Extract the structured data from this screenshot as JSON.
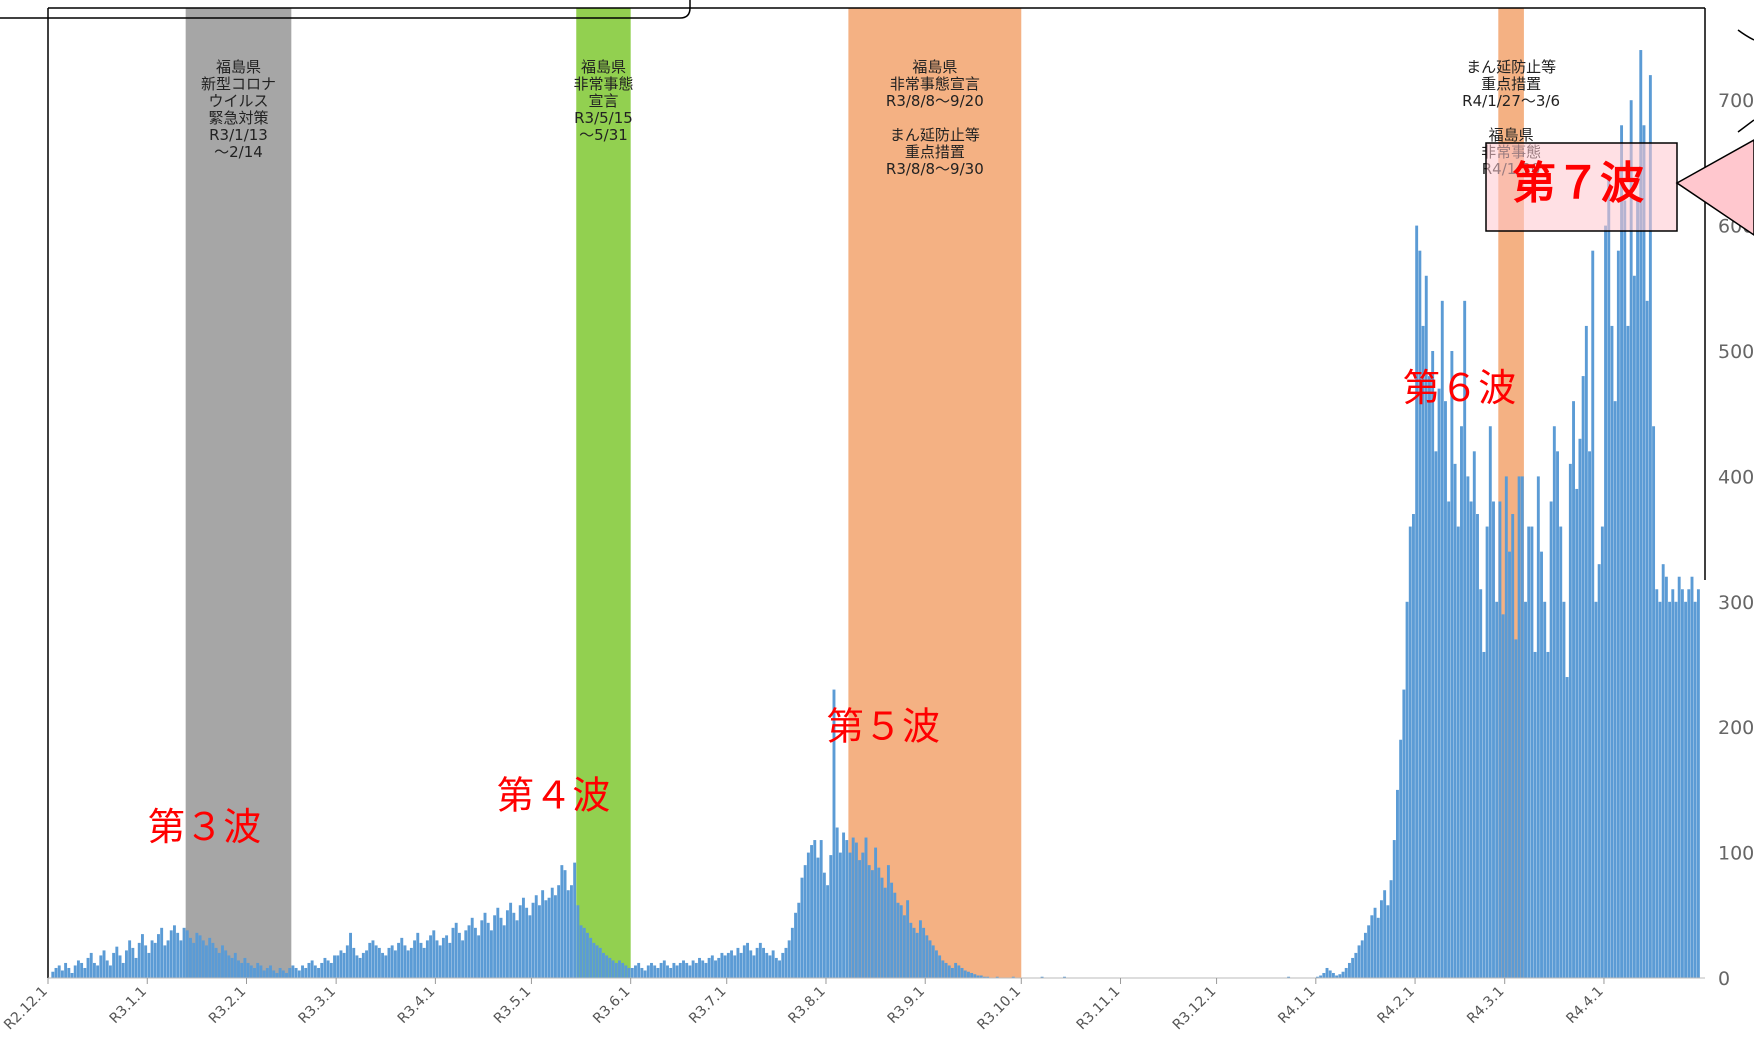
{
  "colors": {
    "bar": "#5b9bd5",
    "gray_band": "#a6a6a6",
    "green_band": "#92d050",
    "orange_band": "#f4b183",
    "wave_text": "#ff0000",
    "callout_fill": "#ffc7ce"
  },
  "chart_data": {
    "type": "bar",
    "title": "",
    "xlabel": "",
    "ylabel": "",
    "x_start": "R2.12.1",
    "ylim": [
      0,
      750
    ],
    "y_ticks": [
      "0",
      "100",
      "200",
      "300",
      "400",
      "500",
      "600",
      "700"
    ],
    "x_ticks": [
      "R2.12.1",
      "R3.1.1",
      "R3.2.1",
      "R3.3.1",
      "R3.4.1",
      "R3.5.1",
      "R3.6.1",
      "R3.7.1",
      "R3.8.1",
      "R3.9.1",
      "R3.10.1",
      "R3.11.1",
      "R3.12.1",
      "R4.1.1",
      "R4.2.1",
      "R4.3.1",
      "R4.4.1"
    ],
    "month_days": [
      31,
      31,
      28,
      31,
      30,
      31,
      30,
      31,
      31,
      30,
      31,
      30,
      31,
      31,
      28,
      31,
      30
    ],
    "monthly_daily_cases": [
      [
        0,
        5,
        8,
        10,
        6,
        12,
        8,
        4,
        10,
        14,
        12,
        8,
        16,
        20,
        12,
        10,
        18,
        22,
        14,
        10,
        20,
        25,
        18,
        12,
        22,
        30,
        24,
        16,
        28,
        35,
        26
      ],
      [
        20,
        30,
        28,
        35,
        40,
        26,
        30,
        38,
        42,
        36,
        30,
        40,
        38,
        32,
        28,
        36,
        34,
        30,
        26,
        32,
        28,
        24,
        20,
        26,
        22,
        18,
        16,
        20,
        14,
        12,
        16
      ],
      [
        12,
        10,
        8,
        12,
        10,
        6,
        8,
        10,
        6,
        4,
        8,
        6,
        4,
        8,
        10,
        8,
        6,
        10,
        8,
        12,
        14,
        10,
        8,
        12,
        16,
        14,
        12,
        18
      ],
      [
        18,
        22,
        20,
        26,
        36,
        24,
        18,
        16,
        20,
        22,
        28,
        30,
        26,
        24,
        20,
        18,
        24,
        26,
        22,
        28,
        32,
        26,
        22,
        24,
        30,
        36,
        28,
        24,
        30,
        34,
        38
      ],
      [
        30,
        26,
        32,
        34,
        28,
        40,
        44,
        36,
        30,
        38,
        42,
        48,
        40,
        34,
        46,
        52,
        44,
        38,
        50,
        56,
        48,
        42,
        54,
        60,
        52,
        46,
        58,
        64,
        56,
        50
      ],
      [
        60,
        66,
        58,
        70,
        62,
        64,
        72,
        66,
        74,
        90,
        86,
        70,
        74,
        92,
        58,
        42,
        40,
        36,
        32,
        28,
        26,
        24,
        20,
        18,
        16,
        14,
        12,
        14,
        12,
        10,
        8
      ],
      [
        8,
        10,
        12,
        8,
        6,
        10,
        12,
        10,
        8,
        12,
        14,
        10,
        8,
        12,
        10,
        12,
        14,
        12,
        10,
        14,
        12,
        16,
        14,
        12,
        16,
        18,
        14,
        16,
        20,
        18
      ],
      [
        20,
        22,
        18,
        24,
        20,
        26,
        28,
        22,
        18,
        24,
        28,
        24,
        20,
        18,
        22,
        16,
        14,
        20,
        24,
        30,
        40,
        52,
        60,
        80,
        90,
        100,
        106,
        110,
        96,
        110,
        84
      ],
      [
        74,
        98,
        230,
        120,
        100,
        116,
        110,
        100,
        112,
        108,
        94,
        100,
        112,
        90,
        86,
        104,
        88,
        80,
        72,
        90,
        76,
        68,
        60,
        58,
        50,
        62,
        44,
        40,
        36,
        46,
        40
      ],
      [
        34,
        30,
        26,
        22,
        18,
        14,
        12,
        10,
        8,
        12,
        10,
        8,
        6,
        5,
        4,
        3,
        2,
        2,
        1,
        1,
        0,
        0,
        1,
        0,
        0,
        0,
        0,
        1,
        0,
        0
      ],
      [
        0,
        0,
        0,
        0,
        0,
        0,
        1,
        0,
        0,
        0,
        0,
        0,
        0,
        1,
        0,
        0,
        0,
        0,
        0,
        0,
        0,
        0,
        0,
        0,
        0,
        0,
        0,
        0,
        0,
        0,
        0
      ],
      [
        0,
        0,
        0,
        0,
        0,
        0,
        0,
        0,
        0,
        0,
        0,
        0,
        0,
        0,
        0,
        0,
        0,
        0,
        0,
        0,
        0,
        0,
        0,
        0,
        0,
        0,
        0,
        0,
        0,
        0
      ],
      [
        0,
        0,
        0,
        0,
        0,
        0,
        0,
        0,
        0,
        0,
        0,
        0,
        0,
        0,
        0,
        0,
        0,
        0,
        0,
        0,
        0,
        0,
        1,
        0,
        0,
        0,
        0,
        0,
        0,
        0,
        0
      ],
      [
        1,
        2,
        4,
        8,
        6,
        4,
        2,
        3,
        5,
        8,
        12,
        16,
        20,
        26,
        30,
        36,
        42,
        50,
        56,
        48,
        62,
        70,
        58,
        78,
        110,
        150,
        190,
        230,
        300,
        360,
        370
      ],
      [
        600,
        580,
        520,
        560,
        480,
        500,
        420,
        470,
        540,
        460,
        380,
        500,
        410,
        360,
        440,
        540,
        400,
        380,
        420,
        370,
        310,
        260,
        360,
        440,
        380,
        300,
        380,
        290
      ],
      [
        400,
        340,
        370,
        270,
        400,
        400,
        300,
        360,
        360,
        260,
        400,
        340,
        300,
        260,
        380,
        440,
        420,
        360,
        300,
        240,
        410,
        460,
        390,
        430,
        480,
        520,
        420,
        580,
        300,
        330,
        360
      ],
      [
        600,
        640,
        520,
        460,
        580,
        680,
        620,
        520,
        700,
        560,
        620,
        740,
        680,
        540,
        720,
        440,
        310,
        300,
        330,
        320,
        300,
        310,
        300,
        320,
        310,
        300,
        310,
        320,
        300,
        310
      ]
    ],
    "periods": [
      {
        "kind": "gray",
        "start_month": 1,
        "start_day": 13,
        "end_month": 2,
        "end_day": 14,
        "label": [
          "福島県",
          "新型コロナ",
          "ウイルス",
          "緊急対策",
          "R3/1/13",
          "～2/14"
        ]
      },
      {
        "kind": "green",
        "start_month": 5,
        "start_day": 15,
        "end_month": 5,
        "end_day": 31,
        "label": [
          "福島県",
          "非常事態",
          "宣言",
          "R3/5/15",
          "～5/31"
        ]
      },
      {
        "kind": "orange",
        "start_month": 8,
        "start_day": 8,
        "end_month": 9,
        "end_day": 30,
        "label": [
          "福島県",
          "非常事態宣言",
          "R3/8/8～9/20",
          "",
          "まん延防止等",
          "重点措置",
          "R3/8/8～9/30"
        ]
      },
      {
        "kind": "orange",
        "start_month": 14,
        "start_day": 27,
        "end_month": 15,
        "end_day": 6,
        "label": [
          "まん延防止等",
          "重点措置",
          "R4/1/27～3/6",
          "",
          "福島県",
          "非常事態",
          "R4/1/30"
        ]
      }
    ],
    "annotations": [
      {
        "text": "第３波",
        "month": 1,
        "day": 1,
        "value": 110
      },
      {
        "text": "第４波",
        "month": 4,
        "day": 20,
        "value": 135
      },
      {
        "text": "第５波",
        "month": 8,
        "day": 1,
        "value": 190
      },
      {
        "text": "第６波",
        "month": 13,
        "day": 28,
        "value": 460
      }
    ],
    "callout": {
      "text": "第７波"
    }
  }
}
